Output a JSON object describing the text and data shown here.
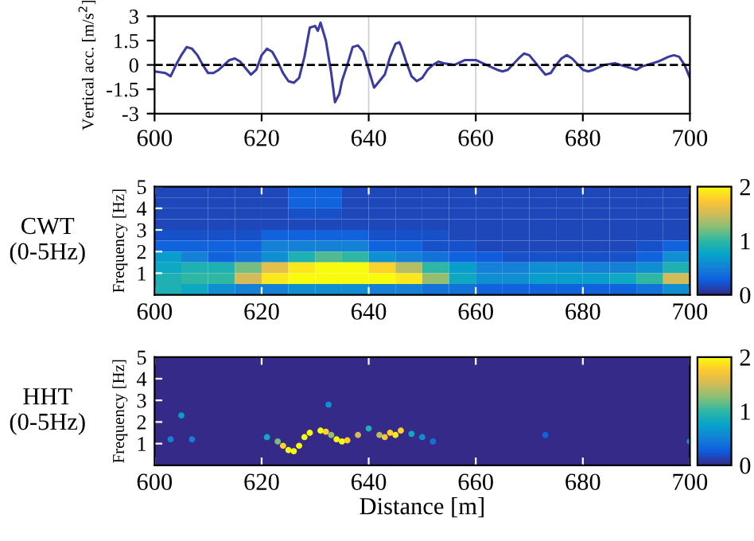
{
  "chart_data": [
    {
      "type": "line",
      "ylabel": "Vertical acc. [m/s$^{2}$]",
      "xlim": [
        600,
        700
      ],
      "xticks": [
        600,
        620,
        640,
        660,
        680,
        700
      ],
      "ylim": [
        -3,
        3
      ],
      "yticks": [
        -3,
        -1.5,
        0,
        1.5,
        3
      ],
      "grid": "x",
      "ref_lines": [
        {
          "axis": "y",
          "value": 0,
          "color": "#000000",
          "line_style": "dashed"
        }
      ],
      "series": [
        {
          "color": "#3b3ba0",
          "x": [
            600,
            602,
            603,
            604,
            605,
            606,
            607,
            608,
            609,
            610,
            611,
            612,
            614,
            615,
            616,
            617,
            618,
            619,
            620,
            621,
            622,
            623,
            624,
            625,
            626,
            627,
            628,
            629,
            630,
            630.5,
            631,
            632,
            633,
            633.7,
            634.5,
            635,
            636,
            637,
            638,
            639,
            640,
            641,
            642,
            643,
            644,
            645,
            645.7,
            646,
            647,
            648,
            649,
            650,
            651,
            652,
            653,
            654,
            656,
            658,
            660,
            662,
            664,
            665,
            666,
            668,
            669,
            670,
            672,
            673,
            674,
            675,
            676,
            677,
            678,
            680,
            681,
            682,
            684,
            686,
            688,
            690,
            691,
            692,
            694,
            696,
            697,
            698,
            699,
            700
          ],
          "values": [
            -0.4,
            -0.5,
            -0.7,
            0,
            0.6,
            1.1,
            1.0,
            0.6,
            0,
            -0.5,
            -0.5,
            -0.3,
            0.3,
            0.4,
            0.2,
            -0.2,
            -0.6,
            -0.3,
            0.6,
            1.0,
            0.8,
            0.2,
            -0.5,
            -1.0,
            -1.1,
            -0.8,
            0.5,
            2.3,
            2.4,
            2.1,
            2.6,
            1.5,
            -0.5,
            -2.3,
            -1.8,
            -1,
            0,
            1.1,
            1.2,
            0.8,
            -0.3,
            -1.4,
            -1.0,
            -0.6,
            0.5,
            1.3,
            1.4,
            1.2,
            0.2,
            -0.7,
            -1.0,
            -0.8,
            -0.3,
            0,
            0.2,
            0.1,
            0,
            0.3,
            0.3,
            0,
            -0.3,
            -0.4,
            -0.3,
            0.4,
            0.7,
            0.6,
            -0.2,
            -0.6,
            -0.5,
            0,
            0.4,
            0.6,
            0.4,
            -0.3,
            -0.4,
            -0.3,
            0,
            0.1,
            -0.1,
            -0.3,
            -0.1,
            0,
            0.2,
            0.5,
            0.6,
            0.5,
            0,
            -0.8
          ]
        }
      ]
    },
    {
      "type": "heatmap",
      "ylabel": "Frequency [Hz]",
      "annotations": [
        "CWT\n(0-5Hz)"
      ],
      "xlim": [
        600,
        700
      ],
      "xticks": [
        600,
        620,
        640,
        660,
        680,
        700
      ],
      "ylim": [
        0,
        5
      ],
      "yticks": [
        1,
        2,
        3,
        4,
        5
      ],
      "clim": [
        0,
        2
      ],
      "cticks": [
        0,
        1,
        2
      ],
      "x": [
        602.5,
        607.5,
        612.5,
        617.5,
        622.5,
        627.5,
        632.5,
        637.5,
        642.5,
        647.5,
        652.5,
        657.5,
        662.5,
        667.5,
        672.5,
        677.5,
        682.5,
        687.5,
        692.5,
        697.5
      ],
      "y": [
        4.75,
        4.25,
        3.75,
        3.25,
        2.75,
        2.25,
        1.75,
        1.25,
        0.75,
        0.25
      ],
      "cells": [
        [
          0.15,
          0.15,
          0.15,
          0.15,
          0.15,
          0.3,
          0.3,
          0.15,
          0.15,
          0.15,
          0.15,
          0.15,
          0.15,
          0.15,
          0.15,
          0.15,
          0.15,
          0.15,
          0.15,
          0.15
        ],
        [
          0.15,
          0.15,
          0.15,
          0.15,
          0.15,
          0.3,
          0.3,
          0.15,
          0.15,
          0.15,
          0.15,
          0.15,
          0.15,
          0.15,
          0.15,
          0.15,
          0.15,
          0.15,
          0.15,
          0.15
        ],
        [
          0.15,
          0.15,
          0.15,
          0.15,
          0.15,
          0.2,
          0.2,
          0.15,
          0.15,
          0.15,
          0.15,
          0.15,
          0.15,
          0.15,
          0.15,
          0.15,
          0.15,
          0.15,
          0.15,
          0.15
        ],
        [
          0.15,
          0.15,
          0.15,
          0.15,
          0.15,
          0.15,
          0.15,
          0.15,
          0.15,
          0.15,
          0.15,
          0.15,
          0.15,
          0.15,
          0.15,
          0.15,
          0.15,
          0.15,
          0.15,
          0.15
        ],
        [
          0.2,
          0.2,
          0.2,
          0.2,
          0.3,
          0.3,
          0.3,
          0.3,
          0.2,
          0.2,
          0.2,
          0.15,
          0.15,
          0.15,
          0.15,
          0.15,
          0.15,
          0.15,
          0.15,
          0.15
        ],
        [
          0.3,
          0.3,
          0.3,
          0.3,
          0.5,
          0.5,
          0.5,
          0.5,
          0.3,
          0.3,
          0.2,
          0.2,
          0.15,
          0.15,
          0.15,
          0.15,
          0.15,
          0.15,
          0.2,
          0.3
        ],
        [
          0.7,
          0.5,
          0.3,
          0.4,
          0.6,
          0.9,
          1.1,
          1.0,
          0.6,
          0.5,
          0.4,
          0.3,
          0.25,
          0.2,
          0.2,
          0.2,
          0.2,
          0.2,
          0.3,
          0.6
        ],
        [
          0.8,
          0.9,
          0.9,
          1.2,
          1.6,
          1.9,
          2.0,
          2.0,
          1.8,
          1.4,
          1.0,
          0.7,
          0.5,
          0.5,
          0.6,
          0.6,
          0.5,
          0.5,
          0.6,
          0.9
        ],
        [
          0.9,
          1.0,
          1.0,
          1.5,
          1.9,
          2.0,
          2.0,
          2.0,
          2.0,
          1.9,
          1.3,
          0.8,
          0.6,
          0.6,
          0.7,
          0.7,
          0.7,
          0.8,
          1.0,
          1.5
        ],
        [
          0.9,
          0.8,
          0.6,
          0.5,
          0.5,
          0.6,
          0.6,
          0.6,
          0.5,
          0.5,
          0.4,
          0.4,
          0.3,
          0.3,
          0.3,
          0.3,
          0.3,
          0.3,
          0.4,
          0.6
        ]
      ]
    },
    {
      "type": "scatter",
      "ylabel": "Frequency [Hz]",
      "xlabel": "Distance [m]",
      "annotations": [
        "HHT\n(0-5Hz)"
      ],
      "xlim": [
        600,
        700
      ],
      "xticks": [
        600,
        620,
        640,
        660,
        680,
        700
      ],
      "ylim": [
        0,
        5
      ],
      "yticks": [
        1,
        2,
        3,
        4,
        5
      ],
      "clim": [
        0,
        2
      ],
      "cticks": [
        0,
        1,
        2
      ],
      "marker": "circle",
      "series": [
        {
          "x": [
            603,
            605,
            607,
            621,
            623,
            624,
            625,
            626,
            627,
            628,
            629,
            631,
            632,
            632.5,
            633,
            634,
            635,
            636,
            638,
            640,
            642,
            643,
            644,
            645,
            646,
            648,
            650,
            652,
            673,
            700
          ],
          "values": [
            1.2,
            2.3,
            1.2,
            1.3,
            1.1,
            0.9,
            0.7,
            0.65,
            0.9,
            1.3,
            1.5,
            1.6,
            1.55,
            2.8,
            1.4,
            1.2,
            1.1,
            1.15,
            1.4,
            1.7,
            1.4,
            1.3,
            1.5,
            1.4,
            1.6,
            1.45,
            1.3,
            1.1,
            1.4,
            1.1
          ],
          "cvalues": [
            0.5,
            0.7,
            0.5,
            0.8,
            1.2,
            1.8,
            2,
            2,
            2,
            2,
            2,
            2,
            1.8,
            0.6,
            1.3,
            2,
            2,
            1.8,
            1.5,
            0.9,
            1.4,
            1.7,
            1.8,
            1.9,
            1.8,
            0.8,
            0.6,
            0.4,
            0.3,
            0.7
          ]
        }
      ]
    }
  ]
}
